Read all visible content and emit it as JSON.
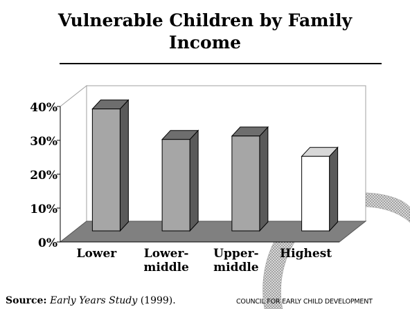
{
  "chart_data": {
    "type": "bar",
    "title": "Vulnerable Children by Family Income",
    "categories": [
      "Lower",
      "Lower-middle",
      "Upper-middle",
      "Highest"
    ],
    "category_lines": [
      [
        "Lower"
      ],
      [
        "Lower-",
        "middle"
      ],
      [
        "Upper-",
        "middle"
      ],
      [
        "Highest"
      ]
    ],
    "values": [
      36,
      27,
      28,
      22
    ],
    "ylim": [
      0,
      40
    ],
    "yticks": [
      "0%",
      "10%",
      "20%",
      "30%",
      "40%"
    ],
    "grid": false,
    "three_d": true,
    "bar_colors": [
      "#a6a6a6",
      "#a6a6a6",
      "#a6a6a6",
      "#ffffff"
    ]
  },
  "footer": {
    "source_label": "Source:",
    "source_work": "Early Years Study",
    "source_year": " (1999).",
    "council": "COUNCIL FOR EARLY CHILD DEVELOPMENT"
  }
}
